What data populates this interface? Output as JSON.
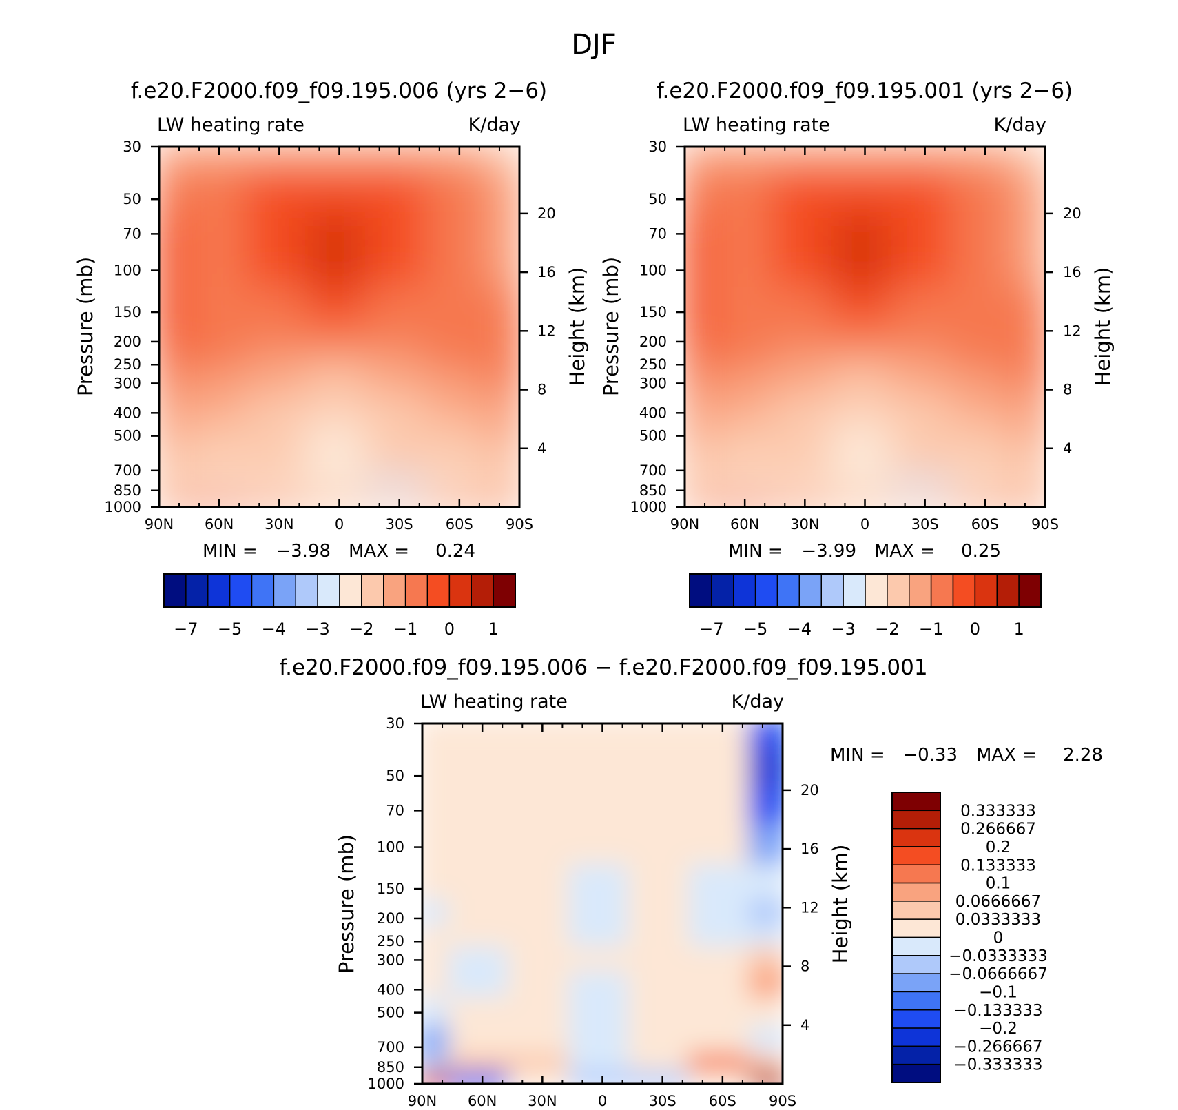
{
  "figure": {
    "title": "DJF"
  },
  "colors": {
    "abs": [
      "#000d80",
      "#0422a8",
      "#0e34d8",
      "#1f4cf2",
      "#3f74f6",
      "#7aa3f7",
      "#afc9fa",
      "#d9e9fb",
      "#fde7d6",
      "#fcc9ad",
      "#f9a37f",
      "#f67850",
      "#f44d22",
      "#da3410",
      "#b41e07",
      "#7e0002"
    ],
    "diff": [
      "#000d80",
      "#0422a8",
      "#0e34d8",
      "#1f4cf2",
      "#3f74f6",
      "#7aa3f7",
      "#afc9fa",
      "#d9e9fb",
      "#fde7d6",
      "#fcc9ad",
      "#f9a37f",
      "#f67850",
      "#f44d22",
      "#da3410",
      "#b41e07",
      "#7e0002"
    ]
  },
  "panels": [
    {
      "title": "f.e20.F2000.f09_f09.195.006 (yrs 2−6)",
      "left_label": "LW heating rate",
      "right_label": "K/day",
      "ylabel": "Pressure (mb)",
      "y2label": "Height (km)",
      "min_label": "MIN =",
      "min_value": "−3.98",
      "max_label": "MAX =",
      "max_value": "0.24"
    },
    {
      "title": "f.e20.F2000.f09_f09.195.001 (yrs 2−6)",
      "left_label": "LW heating rate",
      "right_label": "K/day",
      "ylabel": "Pressure (mb)",
      "y2label": "Height (km)",
      "min_label": "MIN =",
      "min_value": "−3.99",
      "max_label": "MAX =",
      "max_value": "0.25"
    },
    {
      "title": "f.e20.F2000.f09_f09.195.006 − f.e20.F2000.f09_f09.195.001",
      "left_label": "LW heating rate",
      "right_label": "K/day",
      "ylabel": "Pressure (mb)",
      "y2label": "Height (km)",
      "min_label": "MIN =",
      "min_value": "−0.33",
      "max_label": "MAX =",
      "max_value": "2.28"
    }
  ],
  "axes": {
    "x_ticks": [
      "90N",
      "60N",
      "30N",
      "0",
      "30S",
      "60S",
      "90S"
    ],
    "y_ticks": [
      "30",
      "50",
      "70",
      "100",
      "150",
      "200",
      "250",
      "300",
      "400",
      "500",
      "700",
      "850",
      "1000"
    ],
    "y2_ticks": [
      "20",
      "16",
      "12",
      "8",
      "4"
    ]
  },
  "colorbar_abs_labels": [
    "−7",
    "−5",
    "−4",
    "−3",
    "−2",
    "−1",
    "0",
    "1"
  ],
  "colorbar_diff_labels": [
    "0.333333",
    "0.266667",
    "0.2",
    "0.133333",
    "0.1",
    "0.0666667",
    "0.0333333",
    "0",
    "−0.0333333",
    "−0.0666667",
    "−0.1",
    "−0.133333",
    "−0.2",
    "−0.266667",
    "−0.333333"
  ],
  "chart_data": [
    {
      "type": "heatmap",
      "title": "f.e20.F2000.f09_f09.195.006 (yrs 2−6)",
      "xlabel": "",
      "ylabel": "Pressure (mb)",
      "y2label": "Height (km)",
      "units": "K/day",
      "variable": "LW heating rate",
      "x": [
        "90N",
        "60N",
        "30N",
        "0",
        "30S",
        "60S",
        "90S"
      ],
      "y": [
        30,
        50,
        70,
        100,
        150,
        200,
        250,
        300,
        400,
        500,
        700,
        850,
        1000
      ],
      "y_scale": "log",
      "y_reversed": true,
      "xlim": [
        "90N",
        "90S"
      ],
      "ylim": [
        1000,
        30
      ],
      "values": [
        [
          -1.1,
          -1.3,
          -1.2,
          -1.2,
          -1.1,
          -1.3,
          -1.6
        ],
        [
          -0.6,
          -1.0,
          -0.3,
          -0.1,
          -0.4,
          -0.9,
          -1.5
        ],
        [
          -0.4,
          -0.9,
          -0.1,
          0.1,
          -0.2,
          -0.9,
          -1.3
        ],
        [
          -0.3,
          -0.9,
          -0.2,
          0.0,
          -0.3,
          -0.9,
          -1.1
        ],
        [
          -0.5,
          -0.9,
          -0.6,
          -0.5,
          -0.6,
          -0.9,
          -1.0
        ],
        [
          -0.5,
          -1.0,
          -1.0,
          -1.0,
          -1.0,
          -0.9,
          -1.0
        ],
        [
          -0.8,
          -1.0,
          -1.3,
          -1.4,
          -1.2,
          -1.0,
          -1.0
        ],
        [
          -1.0,
          -1.1,
          -1.5,
          -1.6,
          -1.5,
          -1.1,
          -0.7
        ],
        [
          -1.1,
          -1.4,
          -1.8,
          -1.9,
          -1.7,
          -1.4,
          -1.4
        ],
        [
          -1.3,
          -1.6,
          -1.9,
          -2.3,
          -1.9,
          -1.6,
          -1.5
        ],
        [
          -1.6,
          -1.8,
          -2.0,
          -2.2,
          -1.9,
          -1.8,
          -1.6
        ],
        [
          -1.7,
          -2.1,
          -2.4,
          -2.1,
          -2.8,
          -2.2,
          -1.6
        ],
        [
          -1.2,
          -0.9,
          -1.5,
          -1.9,
          -1.6,
          -1.1,
          -1.4
        ]
      ],
      "colorbar_levels": [
        -7,
        -6,
        -5,
        -4.5,
        -4,
        -3.5,
        -3,
        -2.5,
        -2,
        -1.5,
        -1,
        -0.5,
        0,
        0.5,
        1
      ],
      "min": -3.98,
      "max": 0.24
    },
    {
      "type": "heatmap",
      "title": "f.e20.F2000.f09_f09.195.001 (yrs 2−6)",
      "xlabel": "",
      "ylabel": "Pressure (mb)",
      "y2label": "Height (km)",
      "units": "K/day",
      "variable": "LW heating rate",
      "x": [
        "90N",
        "60N",
        "30N",
        "0",
        "30S",
        "60S",
        "90S"
      ],
      "y": [
        30,
        50,
        70,
        100,
        150,
        200,
        250,
        300,
        400,
        500,
        700,
        850,
        1000
      ],
      "y_scale": "log",
      "y_reversed": true,
      "xlim": [
        "90N",
        "90S"
      ],
      "ylim": [
        1000,
        30
      ],
      "values": [
        [
          -1.1,
          -1.3,
          -1.2,
          -1.2,
          -1.1,
          -1.3,
          -1.6
        ],
        [
          -0.6,
          -1.0,
          -0.3,
          -0.1,
          -0.4,
          -0.9,
          -1.5
        ],
        [
          -0.4,
          -0.9,
          -0.2,
          0.1,
          -0.2,
          -0.9,
          -1.3
        ],
        [
          -0.3,
          -0.9,
          -0.3,
          0.0,
          -0.3,
          -0.9,
          -1.1
        ],
        [
          -0.5,
          -0.9,
          -0.6,
          -0.5,
          -0.6,
          -0.9,
          -1.0
        ],
        [
          -0.5,
          -1.0,
          -1.0,
          -1.0,
          -1.0,
          -0.9,
          -1.0
        ],
        [
          -0.8,
          -1.0,
          -1.3,
          -1.4,
          -1.2,
          -1.0,
          -1.0
        ],
        [
          -1.0,
          -1.1,
          -1.5,
          -1.6,
          -1.5,
          -1.1,
          -0.7
        ],
        [
          -1.1,
          -1.4,
          -1.8,
          -1.9,
          -1.7,
          -1.4,
          -1.4
        ],
        [
          -1.3,
          -1.6,
          -1.9,
          -2.3,
          -1.9,
          -1.6,
          -1.5
        ],
        [
          -1.6,
          -1.8,
          -2.0,
          -2.2,
          -1.9,
          -1.8,
          -1.6
        ],
        [
          -1.7,
          -2.1,
          -2.4,
          -2.1,
          -2.8,
          -2.2,
          -1.6
        ],
        [
          -1.2,
          -0.9,
          -1.5,
          -1.9,
          -1.6,
          -1.1,
          -1.4
        ]
      ],
      "colorbar_levels": [
        -7,
        -6,
        -5,
        -4.5,
        -4,
        -3.5,
        -3,
        -2.5,
        -2,
        -1.5,
        -1,
        -0.5,
        0,
        0.5,
        1
      ],
      "min": -3.99,
      "max": 0.25
    },
    {
      "type": "heatmap",
      "title": "f.e20.F2000.f09_f09.195.006 − f.e20.F2000.f09_f09.195.001",
      "xlabel": "",
      "ylabel": "Pressure (mb)",
      "y2label": "Height (km)",
      "units": "K/day",
      "variable": "LW heating rate",
      "x": [
        "90N",
        "60N",
        "30N",
        "0",
        "30S",
        "60S",
        "90S"
      ],
      "y": [
        30,
        50,
        70,
        100,
        150,
        200,
        250,
        300,
        400,
        500,
        700,
        850,
        1000
      ],
      "y_scale": "log",
      "y_reversed": true,
      "xlim": [
        "90N",
        "90S"
      ],
      "ylim": [
        1000,
        30
      ],
      "values": [
        [
          0.0,
          0.02,
          0.0,
          0.02,
          0.0,
          0.0,
          -0.15
        ],
        [
          0.02,
          0.03,
          0.0,
          0.02,
          0.0,
          0.02,
          -0.25
        ],
        [
          0.02,
          0.03,
          0.02,
          0.0,
          0.02,
          0.02,
          -0.2
        ],
        [
          0.0,
          0.03,
          0.02,
          0.0,
          0.02,
          0.0,
          -0.1
        ],
        [
          0.0,
          0.02,
          0.03,
          -0.02,
          0.02,
          -0.02,
          -0.02
        ],
        [
          -0.02,
          0.02,
          0.03,
          -0.02,
          0.0,
          -0.02,
          -0.05
        ],
        [
          0.0,
          0.0,
          0.02,
          -0.02,
          0.02,
          -0.02,
          -0.02
        ],
        [
          0.03,
          -0.02,
          0.02,
          0.0,
          0.03,
          0.0,
          0.05
        ],
        [
          0.03,
          -0.02,
          0.02,
          -0.02,
          0.02,
          0.02,
          0.08
        ],
        [
          -0.03,
          0.0,
          0.02,
          -0.03,
          0.02,
          0.02,
          0.0
        ],
        [
          -0.08,
          0.0,
          0.03,
          -0.02,
          0.02,
          0.03,
          -0.03
        ],
        [
          -0.05,
          0.05,
          0.06,
          -0.03,
          0.02,
          0.1,
          0.05
        ],
        [
          0.2,
          -0.15,
          0.03,
          -0.05,
          -0.05,
          0.03,
          0.3
        ]
      ],
      "colorbar_levels": [
        -0.333333,
        -0.266667,
        -0.2,
        -0.133333,
        -0.1,
        -0.0666667,
        -0.0333333,
        0,
        0.0333333,
        0.0666667,
        0.1,
        0.133333,
        0.2,
        0.266667,
        0.333333
      ],
      "min": -0.33,
      "max": 2.28
    }
  ]
}
